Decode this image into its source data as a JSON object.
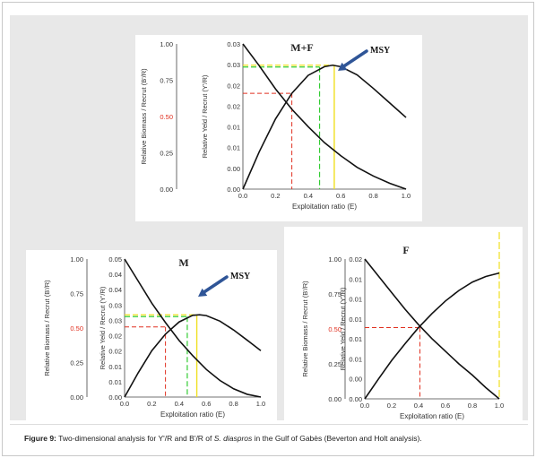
{
  "caption": {
    "label": "Figure 9:",
    "text_before": " Two-dimensional analysis for Y'/R and B'/R of ",
    "species": "S. diaspros",
    "text_after": " in the Gulf of Gabès (Beverton and Holt analysis)."
  },
  "colors": {
    "curve": "#111111",
    "red_line": "#e03020",
    "green_line": "#33cc33",
    "yellow_line": "#f0e020",
    "arrow": "#2f5597"
  },
  "chart_data": [
    {
      "type": "line",
      "title": "M+F",
      "annotation": "MSY",
      "xlabel": "Exploitation ratio (E)",
      "ylabel_left": "Relative Biomass / Recrut (B'/R)",
      "ylabel_right": "Relative Yeld / Recrut (Y'/R)",
      "xlim": [
        0,
        1
      ],
      "ylim_left": [
        0,
        1
      ],
      "ylim_right": [
        0,
        0.03
      ],
      "x_ticks": [
        "0.0",
        "0.2",
        "0.4",
        "0.6",
        "0.8",
        "1.0"
      ],
      "y_left_ticks": [
        "0.00",
        "0.25",
        "0.50",
        "0.75",
        "1.00"
      ],
      "y_right_ticks": [
        "0.00",
        "0.00",
        "0.01",
        "0.01",
        "0.02",
        "0.02",
        "0.03",
        "0.03"
      ],
      "highlight_left_tick": "0.50",
      "series": [
        {
          "key": "biomass",
          "x": [
            0,
            0.1,
            0.2,
            0.3,
            0.4,
            0.5,
            0.6,
            0.7,
            0.8,
            0.9,
            1.0
          ],
          "y": [
            1.0,
            0.85,
            0.69,
            0.55,
            0.43,
            0.32,
            0.23,
            0.15,
            0.09,
            0.04,
            0.0
          ]
        },
        {
          "key": "yield",
          "x": [
            0,
            0.1,
            0.2,
            0.3,
            0.4,
            0.5,
            0.55,
            0.6,
            0.7,
            0.8,
            0.9,
            1.0
          ],
          "y": [
            0.0,
            0.0077,
            0.0145,
            0.0198,
            0.0235,
            0.0253,
            0.0256,
            0.0253,
            0.0236,
            0.0208,
            0.0178,
            0.0148
          ]
        }
      ],
      "markers": {
        "e50": 0.3,
        "emsy": 0.47,
        "emax": 0.56,
        "y_red": 0.0198,
        "y_msy": 0.0256
      }
    },
    {
      "type": "line",
      "title": "M",
      "annotation": "MSY",
      "xlabel": "Exploitation ratio (E)",
      "ylabel_left": "Relative Biomass / Recrut (B'/R)",
      "ylabel_right": "Relative Yeld / Recrut (Y'/R)",
      "xlim": [
        0,
        1
      ],
      "ylim_left": [
        0,
        1
      ],
      "ylim_right": [
        0,
        0.05
      ],
      "x_ticks": [
        "0.0",
        "0.2",
        "0.4",
        "0.6",
        "0.8",
        "1.0"
      ],
      "y_left_ticks": [
        "0.00",
        "0.25",
        "0.50",
        "0.75",
        "1.00"
      ],
      "y_right_ticks": [
        "0.00",
        "0.01",
        "0.01",
        "0.02",
        "0.02",
        "0.03",
        "0.03",
        "0.04",
        "0.04",
        "0.05"
      ],
      "highlight_left_tick": "0.50",
      "series": [
        {
          "key": "biomass",
          "x": [
            0,
            0.1,
            0.2,
            0.3,
            0.4,
            0.5,
            0.6,
            0.7,
            0.8,
            0.9,
            1.0
          ],
          "y": [
            1.0,
            0.84,
            0.68,
            0.54,
            0.41,
            0.3,
            0.2,
            0.12,
            0.06,
            0.02,
            0.0
          ]
        },
        {
          "key": "yield",
          "x": [
            0,
            0.1,
            0.2,
            0.3,
            0.4,
            0.5,
            0.55,
            0.6,
            0.7,
            0.8,
            0.9,
            1.0
          ],
          "y": [
            0.0,
            0.0088,
            0.0168,
            0.0228,
            0.0272,
            0.0296,
            0.0298,
            0.0295,
            0.0275,
            0.0243,
            0.0206,
            0.0168
          ]
        }
      ],
      "markers": {
        "e50": 0.3,
        "emsy": 0.46,
        "emax": 0.53,
        "y_red": 0.0254,
        "y_msy": 0.0298
      }
    },
    {
      "type": "line",
      "title": "F",
      "xlabel": "Exploitation ratio (E)",
      "ylabel_left": "Relative Biomass / Recrut (B'/R)",
      "ylabel_right": "Relative Yeld / Recrut (Y'/R)",
      "xlim": [
        0,
        1
      ],
      "ylim_left": [
        0,
        1
      ],
      "ylim_right": [
        0,
        0.02
      ],
      "x_ticks": [
        "0.0",
        "0.2",
        "0.4",
        "0.6",
        "0.8",
        "1.0"
      ],
      "y_left_ticks": [
        "0.00",
        "0.25",
        "0.50",
        "0.75",
        "1.00"
      ],
      "y_right_ticks": [
        "0.00",
        "0.00",
        "0.01",
        "0.01",
        "0.01",
        "0.01",
        "0.01",
        "0.02"
      ],
      "highlight_left_tick": "0.50",
      "series": [
        {
          "key": "biomass",
          "x": [
            0,
            0.1,
            0.2,
            0.3,
            0.4,
            0.5,
            0.6,
            0.7,
            0.8,
            0.9,
            1.0
          ],
          "y": [
            1.0,
            0.88,
            0.76,
            0.64,
            0.53,
            0.43,
            0.34,
            0.25,
            0.17,
            0.08,
            0.0
          ]
        },
        {
          "key": "yield",
          "x": [
            0,
            0.1,
            0.2,
            0.3,
            0.4,
            0.5,
            0.6,
            0.7,
            0.8,
            0.9,
            1.0
          ],
          "y": [
            0.0,
            0.0028,
            0.0055,
            0.0079,
            0.0102,
            0.0122,
            0.014,
            0.0155,
            0.0167,
            0.0175,
            0.018
          ]
        }
      ],
      "markers": {
        "e50": 0.41,
        "emax": 1.0,
        "y_red": 0.0102
      }
    }
  ]
}
